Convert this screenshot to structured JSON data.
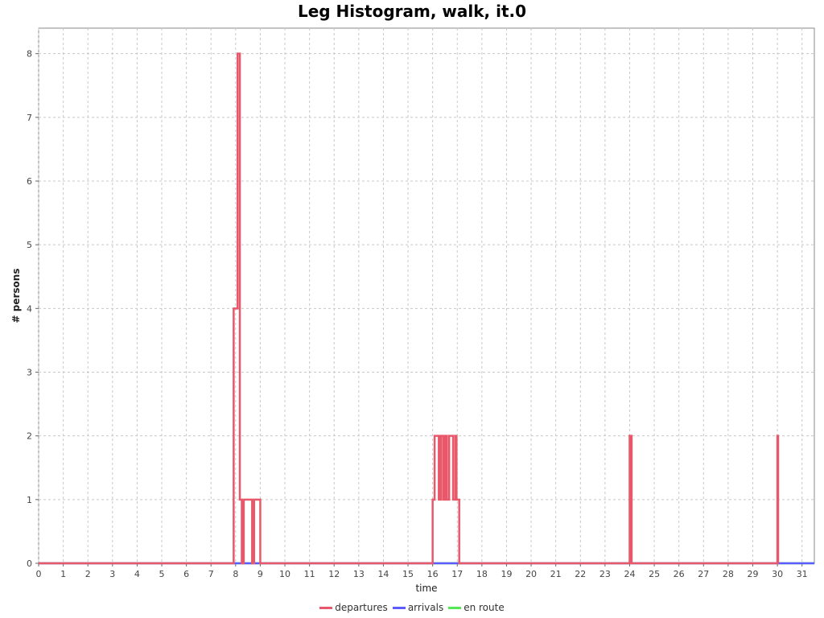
{
  "chart_data": {
    "type": "line",
    "title": "Leg Histogram, walk, it.0",
    "xlabel": "time",
    "ylabel": "# persons",
    "xlim": [
      0,
      31.5
    ],
    "ylim": [
      0,
      8.4
    ],
    "x_ticks": [
      0,
      1,
      2,
      3,
      4,
      5,
      6,
      7,
      8,
      9,
      10,
      11,
      12,
      13,
      14,
      15,
      16,
      17,
      18,
      19,
      20,
      21,
      22,
      23,
      24,
      25,
      26,
      27,
      28,
      29,
      30,
      31
    ],
    "y_ticks": [
      0,
      1,
      2,
      3,
      4,
      5,
      6,
      7,
      8
    ],
    "grid": true,
    "legend_position": "bottom",
    "series": [
      {
        "name": "departures",
        "color": "#e8586a",
        "step": true,
        "points": [
          [
            0,
            0
          ],
          [
            7.92,
            0
          ],
          [
            7.92,
            4
          ],
          [
            8.08,
            4
          ],
          [
            8.08,
            8
          ],
          [
            8.17,
            8
          ],
          [
            8.17,
            1
          ],
          [
            8.25,
            1
          ],
          [
            8.25,
            0
          ],
          [
            8.33,
            0
          ],
          [
            8.33,
            1
          ],
          [
            8.67,
            1
          ],
          [
            8.67,
            0
          ],
          [
            8.75,
            0
          ],
          [
            8.75,
            1
          ],
          [
            9.0,
            1
          ],
          [
            9.0,
            0
          ],
          [
            16.0,
            0
          ],
          [
            16.0,
            1
          ],
          [
            16.08,
            1
          ],
          [
            16.08,
            2
          ],
          [
            16.25,
            2
          ],
          [
            16.25,
            1
          ],
          [
            16.33,
            1
          ],
          [
            16.33,
            2
          ],
          [
            16.42,
            2
          ],
          [
            16.42,
            1
          ],
          [
            16.5,
            1
          ],
          [
            16.5,
            2
          ],
          [
            16.58,
            2
          ],
          [
            16.58,
            1
          ],
          [
            16.67,
            1
          ],
          [
            16.67,
            2
          ],
          [
            16.83,
            2
          ],
          [
            16.83,
            1
          ],
          [
            16.92,
            1
          ],
          [
            16.92,
            2
          ],
          [
            16.97,
            2
          ],
          [
            16.97,
            1
          ],
          [
            17.08,
            1
          ],
          [
            17.08,
            0
          ],
          [
            24.0,
            0
          ],
          [
            24.0,
            2
          ],
          [
            24.08,
            2
          ],
          [
            24.08,
            0
          ],
          [
            30.0,
            0
          ],
          [
            30.0,
            2
          ],
          [
            30.03,
            2
          ],
          [
            30.03,
            0
          ]
        ]
      },
      {
        "name": "arrivals",
        "color": "#5b5bff",
        "step": true,
        "points": [
          [
            0,
            0
          ],
          [
            31.5,
            0
          ]
        ]
      },
      {
        "name": "en route",
        "color": "#55e855",
        "step": true,
        "points": [
          [
            0,
            0
          ],
          [
            31.5,
            0
          ]
        ]
      }
    ]
  }
}
